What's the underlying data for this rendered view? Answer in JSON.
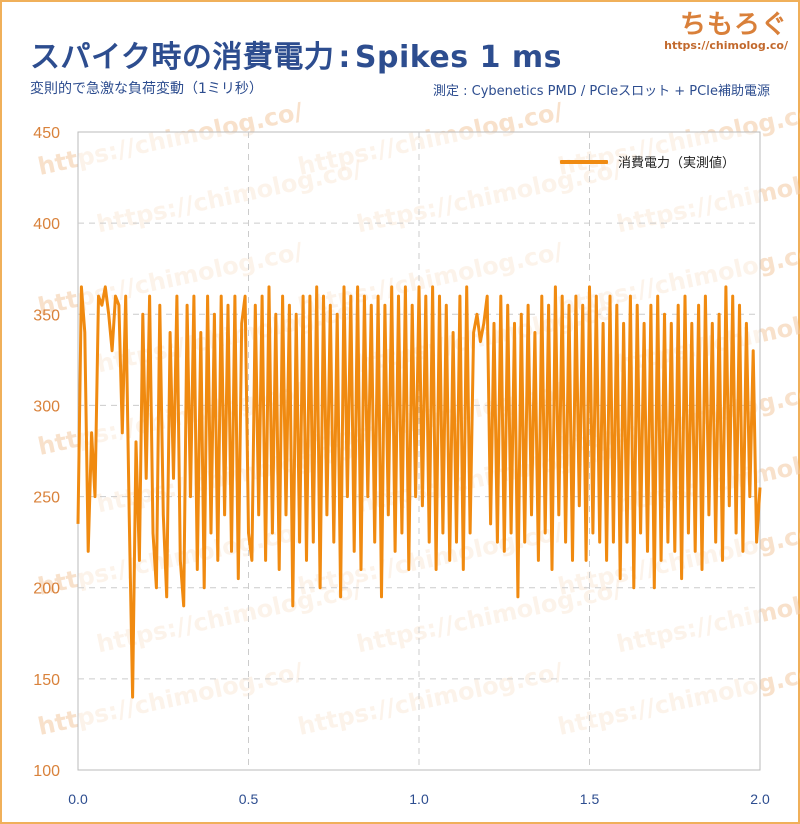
{
  "header": {
    "title": "スパイク時の消費電力",
    "title_sep": ":",
    "title_en": "Spikes 1 ms",
    "subtitle": "変則的で急激な負荷変動（1ミリ秒）",
    "measurement": "測定 : Cybenetics PMD / PCIeスロット + PCIe補助電源"
  },
  "logo": {
    "mark": "ちもろぐ",
    "url": "https://chimolog.co/"
  },
  "colors": {
    "title": "#2d4d8f",
    "line": "#f08a10",
    "ytick": "#d9823b",
    "frame": "#f0b05a",
    "grid": "#cccccc"
  },
  "chart_data": {
    "type": "line",
    "xlim": [
      0.0,
      2.0
    ],
    "ylim": [
      100,
      450
    ],
    "xticks": [
      "0.0",
      "0.5",
      "1.0",
      "1.5",
      "2.0"
    ],
    "yticks": [
      "100",
      "150",
      "200",
      "250",
      "300",
      "350",
      "400",
      "450"
    ],
    "grid": true,
    "legend_position": "top-right",
    "series": [
      {
        "name": "消費電力（実測値）",
        "x": [
          0.0,
          0.01,
          0.02,
          0.03,
          0.04,
          0.05,
          0.06,
          0.07,
          0.08,
          0.09,
          0.1,
          0.11,
          0.12,
          0.13,
          0.14,
          0.15,
          0.16,
          0.17,
          0.18,
          0.19,
          0.2,
          0.21,
          0.22,
          0.23,
          0.24,
          0.25,
          0.26,
          0.27,
          0.28,
          0.29,
          0.3,
          0.31,
          0.32,
          0.33,
          0.34,
          0.35,
          0.36,
          0.37,
          0.38,
          0.39,
          0.4,
          0.41,
          0.42,
          0.43,
          0.44,
          0.45,
          0.46,
          0.47,
          0.48,
          0.49,
          0.5,
          0.51,
          0.52,
          0.53,
          0.54,
          0.55,
          0.56,
          0.57,
          0.58,
          0.59,
          0.6,
          0.61,
          0.62,
          0.63,
          0.64,
          0.65,
          0.66,
          0.67,
          0.68,
          0.69,
          0.7,
          0.71,
          0.72,
          0.73,
          0.74,
          0.75,
          0.76,
          0.77,
          0.78,
          0.79,
          0.8,
          0.81,
          0.82,
          0.83,
          0.84,
          0.85,
          0.86,
          0.87,
          0.88,
          0.89,
          0.9,
          0.91,
          0.92,
          0.93,
          0.94,
          0.95,
          0.96,
          0.97,
          0.98,
          0.99,
          1.0,
          1.01,
          1.02,
          1.03,
          1.04,
          1.05,
          1.06,
          1.07,
          1.08,
          1.09,
          1.1,
          1.11,
          1.12,
          1.13,
          1.14,
          1.15,
          1.16,
          1.17,
          1.18,
          1.19,
          1.2,
          1.21,
          1.22,
          1.23,
          1.24,
          1.25,
          1.26,
          1.27,
          1.28,
          1.29,
          1.3,
          1.31,
          1.32,
          1.33,
          1.34,
          1.35,
          1.36,
          1.37,
          1.38,
          1.39,
          1.4,
          1.41,
          1.42,
          1.43,
          1.44,
          1.45,
          1.46,
          1.47,
          1.48,
          1.49,
          1.5,
          1.51,
          1.52,
          1.53,
          1.54,
          1.55,
          1.56,
          1.57,
          1.58,
          1.59,
          1.6,
          1.61,
          1.62,
          1.63,
          1.64,
          1.65,
          1.66,
          1.67,
          1.68,
          1.69,
          1.7,
          1.71,
          1.72,
          1.73,
          1.74,
          1.75,
          1.76,
          1.77,
          1.78,
          1.79,
          1.8,
          1.81,
          1.82,
          1.83,
          1.84,
          1.85,
          1.86,
          1.87,
          1.88,
          1.89,
          1.9,
          1.91,
          1.92,
          1.93,
          1.94,
          1.95,
          1.96,
          1.97,
          1.98,
          1.99,
          2.0
        ],
        "y": [
          235,
          365,
          340,
          220,
          285,
          250,
          360,
          355,
          365,
          350,
          330,
          360,
          355,
          285,
          360,
          240,
          140,
          280,
          215,
          350,
          260,
          360,
          230,
          200,
          355,
          240,
          195,
          340,
          260,
          360,
          215,
          190,
          355,
          250,
          360,
          210,
          340,
          200,
          360,
          230,
          350,
          215,
          360,
          240,
          355,
          220,
          360,
          205,
          345,
          360,
          230,
          215,
          355,
          240,
          360,
          215,
          365,
          230,
          350,
          210,
          360,
          240,
          355,
          190,
          350,
          225,
          360,
          215,
          360,
          225,
          365,
          200,
          360,
          240,
          355,
          225,
          350,
          195,
          365,
          250,
          360,
          220,
          365,
          210,
          360,
          250,
          355,
          225,
          360,
          195,
          355,
          240,
          365,
          220,
          360,
          230,
          365,
          210,
          355,
          250,
          365,
          245,
          360,
          225,
          365,
          210,
          360,
          230,
          355,
          215,
          340,
          225,
          360,
          210,
          365,
          230,
          340,
          350,
          335,
          345,
          360,
          235,
          345,
          225,
          360,
          220,
          355,
          230,
          345,
          195,
          350,
          225,
          355,
          240,
          340,
          215,
          360,
          230,
          355,
          210,
          365,
          240,
          360,
          225,
          355,
          215,
          360,
          245,
          355,
          215,
          365,
          230,
          360,
          225,
          345,
          215,
          360,
          225,
          355,
          205,
          345,
          225,
          360,
          200,
          355,
          230,
          345,
          220,
          355,
          200,
          360,
          215,
          350,
          225,
          345,
          220,
          355,
          205,
          360,
          230,
          345,
          220,
          355,
          210,
          360,
          240,
          345,
          225,
          350,
          215,
          365,
          245,
          360,
          230,
          355,
          220,
          345,
          250,
          330,
          225,
          255
        ]
      }
    ]
  },
  "watermark": "https://chimolog.co/"
}
